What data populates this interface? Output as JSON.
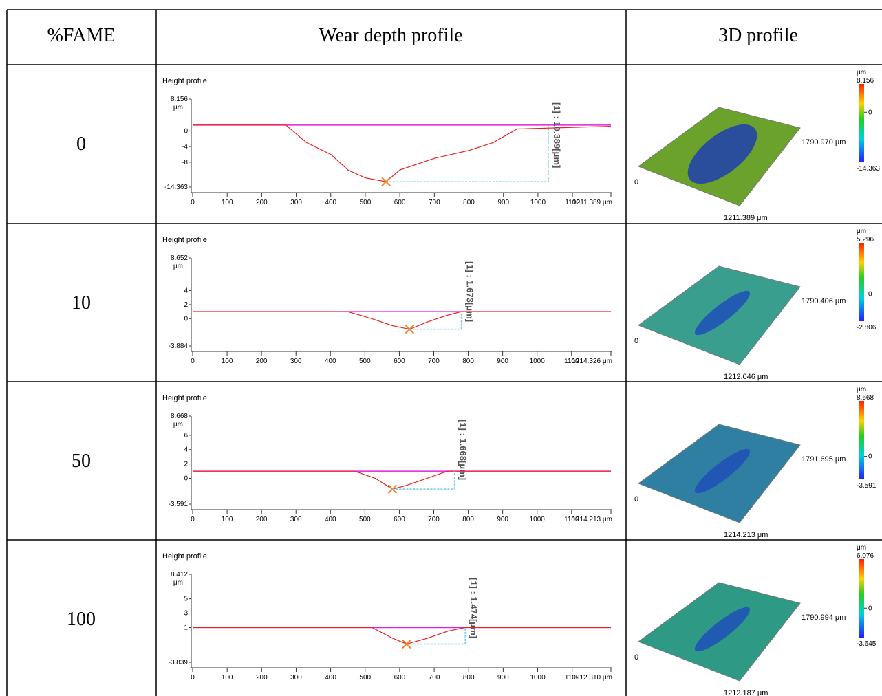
{
  "table": {
    "header": [
      "%FAME",
      "Wear depth profile",
      "3D profile"
    ],
    "rows": [
      {
        "fame": "0",
        "profile": {
          "title": "Height profile",
          "unit": "μm",
          "ylim": [
            -14.363,
            8.156
          ],
          "yticks": [
            8.156,
            0,
            -4,
            -8,
            -14.363
          ],
          "xticks": [
            0,
            100,
            200,
            300,
            400,
            500,
            600,
            700,
            800,
            900,
            1000,
            1100
          ],
          "xend": {
            "value": 1211.389,
            "label": "1211.389 μm"
          },
          "x": [
            0,
            270,
            330,
            400,
            450,
            500,
            560,
            600,
            700,
            800,
            870,
            940,
            1211.389
          ],
          "y": [
            1.5,
            1.5,
            -3,
            -6,
            -10,
            -12,
            -13,
            -10,
            -7,
            -5,
            -3,
            0.5,
            1.2
          ],
          "annotation": "[1] : 10.389[μm]"
        },
        "surface": {
          "unit": "μm",
          "max": 8.156,
          "min": -14.363,
          "zero": 0,
          "width": "1790.970 μm",
          "length": "1211.389 μm",
          "origin": "0",
          "color": "#6aa22c"
        }
      },
      {
        "fame": "10",
        "profile": {
          "title": "Height profile",
          "unit": "μm",
          "ylim": [
            -3.884,
            8.652
          ],
          "yticks": [
            8.652,
            4,
            2,
            0,
            -3.884
          ],
          "xticks": [
            0,
            100,
            200,
            300,
            400,
            500,
            600,
            700,
            800,
            900,
            1000,
            1100
          ],
          "xend": {
            "value": 1214.326,
            "label": "1214.326 μm"
          },
          "x": [
            0,
            450,
            520,
            580,
            630,
            680,
            740,
            780,
            1214.326
          ],
          "y": [
            1,
            1,
            0,
            -1,
            -1.5,
            -0.5,
            0.5,
            1,
            1
          ],
          "annotation": "[1] : 1.673[μm]"
        },
        "surface": {
          "unit": "μm",
          "max": 5.296,
          "min": -2.806,
          "zero": 0,
          "width": "1790.406 μm",
          "length": "1212.046 μm",
          "origin": "0",
          "color": "#3a9e8e"
        }
      },
      {
        "fame": "50",
        "profile": {
          "title": "Height profile",
          "unit": "μm",
          "ylim": [
            -3.591,
            8.668
          ],
          "yticks": [
            8.668,
            6,
            4,
            2,
            0,
            -3.591
          ],
          "xticks": [
            0,
            100,
            200,
            300,
            400,
            500,
            600,
            700,
            800,
            900,
            1000,
            1100
          ],
          "xend": {
            "value": 1214.213,
            "label": "1214.213 μm"
          },
          "x": [
            0,
            470,
            530,
            580,
            620,
            680,
            740,
            1214.213
          ],
          "y": [
            1,
            1,
            0,
            -1.5,
            -1,
            0,
            1,
            1
          ],
          "annotation": "[1] : 1.668[μm]"
        },
        "surface": {
          "unit": "μm",
          "max": 8.668,
          "min": -3.591,
          "zero": 0,
          "width": "1791.695 μm",
          "length": "1214.213 μm",
          "origin": "0",
          "color": "#2f7fa2"
        }
      },
      {
        "fame": "100",
        "profile": {
          "title": "Height profile",
          "unit": "μm",
          "ylim": [
            -3.839,
            8.412
          ],
          "yticks": [
            8.412,
            5,
            3,
            1,
            -3.839
          ],
          "xticks": [
            0,
            100,
            200,
            300,
            400,
            500,
            600,
            700,
            800,
            900,
            1000,
            1100
          ],
          "xend": {
            "value": 1212.31,
            "label": "1212.310 μm"
          },
          "x": [
            0,
            520,
            580,
            620,
            680,
            740,
            790,
            1212.31
          ],
          "y": [
            1,
            1,
            -0.5,
            -1.3,
            -0.5,
            0.5,
            1,
            1
          ],
          "annotation": "[1] : 1.474[μm]"
        },
        "surface": {
          "unit": "μm",
          "max": 6.076,
          "min": -3.645,
          "zero": 0,
          "width": "1790.994 μm",
          "length": "1212.187 μm",
          "origin": "0",
          "color": "#2e9a86"
        }
      }
    ]
  }
}
